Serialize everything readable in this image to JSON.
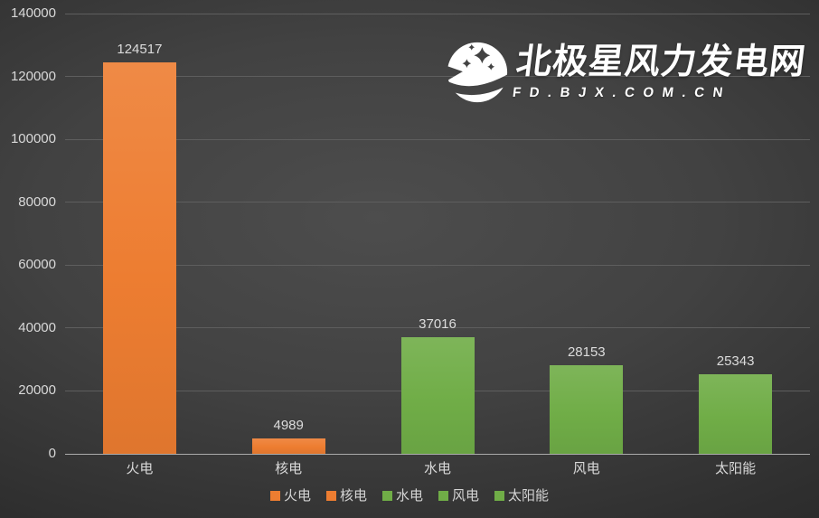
{
  "watermark": {
    "title": "北极星风力发电网",
    "subtitle": "FD.BJX.COM.CN",
    "icon": "bjx-star-logo-icon",
    "color": "#ffffff"
  },
  "chart_data": {
    "type": "bar",
    "title": "",
    "xlabel": "",
    "ylabel": "",
    "categories": [
      "火电",
      "核电",
      "水电",
      "风电",
      "太阳能"
    ],
    "values": [
      124517,
      4989,
      37016,
      28153,
      25343
    ],
    "bar_colors": [
      "#ED7D31",
      "#ED7D31",
      "#70AD47",
      "#70AD47",
      "#70AD47"
    ],
    "data_labels": [
      "124517",
      "4989",
      "37016",
      "28153",
      "25343"
    ],
    "ylim": [
      0,
      140000
    ],
    "ytick_interval": 20000,
    "yticks": [
      0,
      20000,
      40000,
      60000,
      80000,
      100000,
      120000,
      140000
    ],
    "grid": true,
    "legend_position": "bottom",
    "legend": [
      {
        "label": "火电",
        "color": "#ED7D31"
      },
      {
        "label": "核电",
        "color": "#ED7D31"
      },
      {
        "label": "水电",
        "color": "#70AD47"
      },
      {
        "label": "风电",
        "color": "#70AD47"
      },
      {
        "label": "太阳能",
        "color": "#70AD47"
      }
    ]
  },
  "colors": {
    "background_center": "#4d4d4d",
    "background_edge": "#232323",
    "gridline": "#5e5e5e",
    "axis_line": "#ababab",
    "text": "#d9d9d9",
    "orange_series": "#ED7D31",
    "green_series": "#70AD47"
  }
}
